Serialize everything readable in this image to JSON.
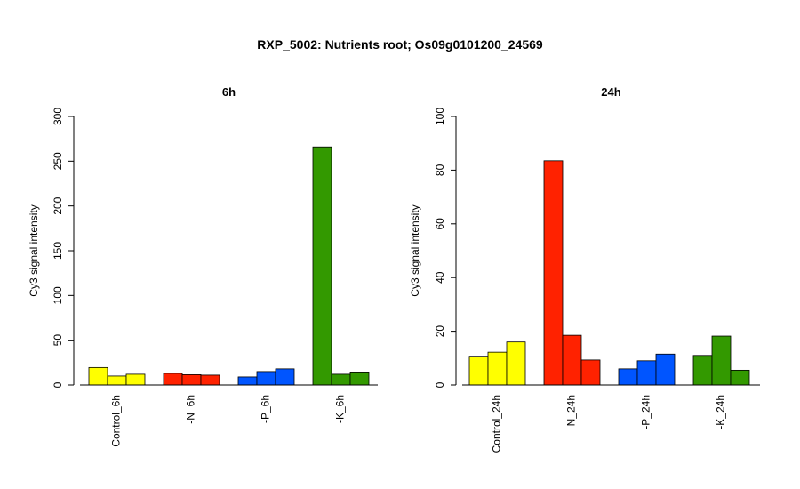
{
  "figure_title": "RXP_5002: Nutrients root; Os09g0101200_24569",
  "chart_data": [
    {
      "type": "bar",
      "title": "6h",
      "xlabel": "",
      "ylabel": "Cy3 signal intensity",
      "ylim": [
        0,
        300
      ],
      "yticks": [
        0,
        50,
        100,
        150,
        200,
        250,
        300
      ],
      "categories": [
        "Control_6h",
        "-N_6h",
        "-P_6h",
        "-K_6h"
      ],
      "group_colors": [
        "#ffff00",
        "#ff2200",
        "#0055ff",
        "#339900"
      ],
      "values": [
        [
          19.5,
          10,
          12
        ],
        [
          13,
          11.5,
          11
        ],
        [
          9,
          15,
          18
        ],
        [
          266,
          12,
          14.5
        ]
      ]
    },
    {
      "type": "bar",
      "title": "24h",
      "xlabel": "",
      "ylabel": "Cy3 signal intensity",
      "ylim": [
        0,
        100
      ],
      "yticks": [
        0,
        20,
        40,
        60,
        80,
        100
      ],
      "categories": [
        "Control_24h",
        "-N_24h",
        "-P_24h",
        "-K_24h"
      ],
      "group_colors": [
        "#ffff00",
        "#ff2200",
        "#0055ff",
        "#339900"
      ],
      "values": [
        [
          10.7,
          12.2,
          16
        ],
        [
          83.5,
          18.5,
          9.3
        ],
        [
          6,
          9,
          11.5
        ],
        [
          11,
          18.2,
          5.5
        ]
      ]
    }
  ]
}
